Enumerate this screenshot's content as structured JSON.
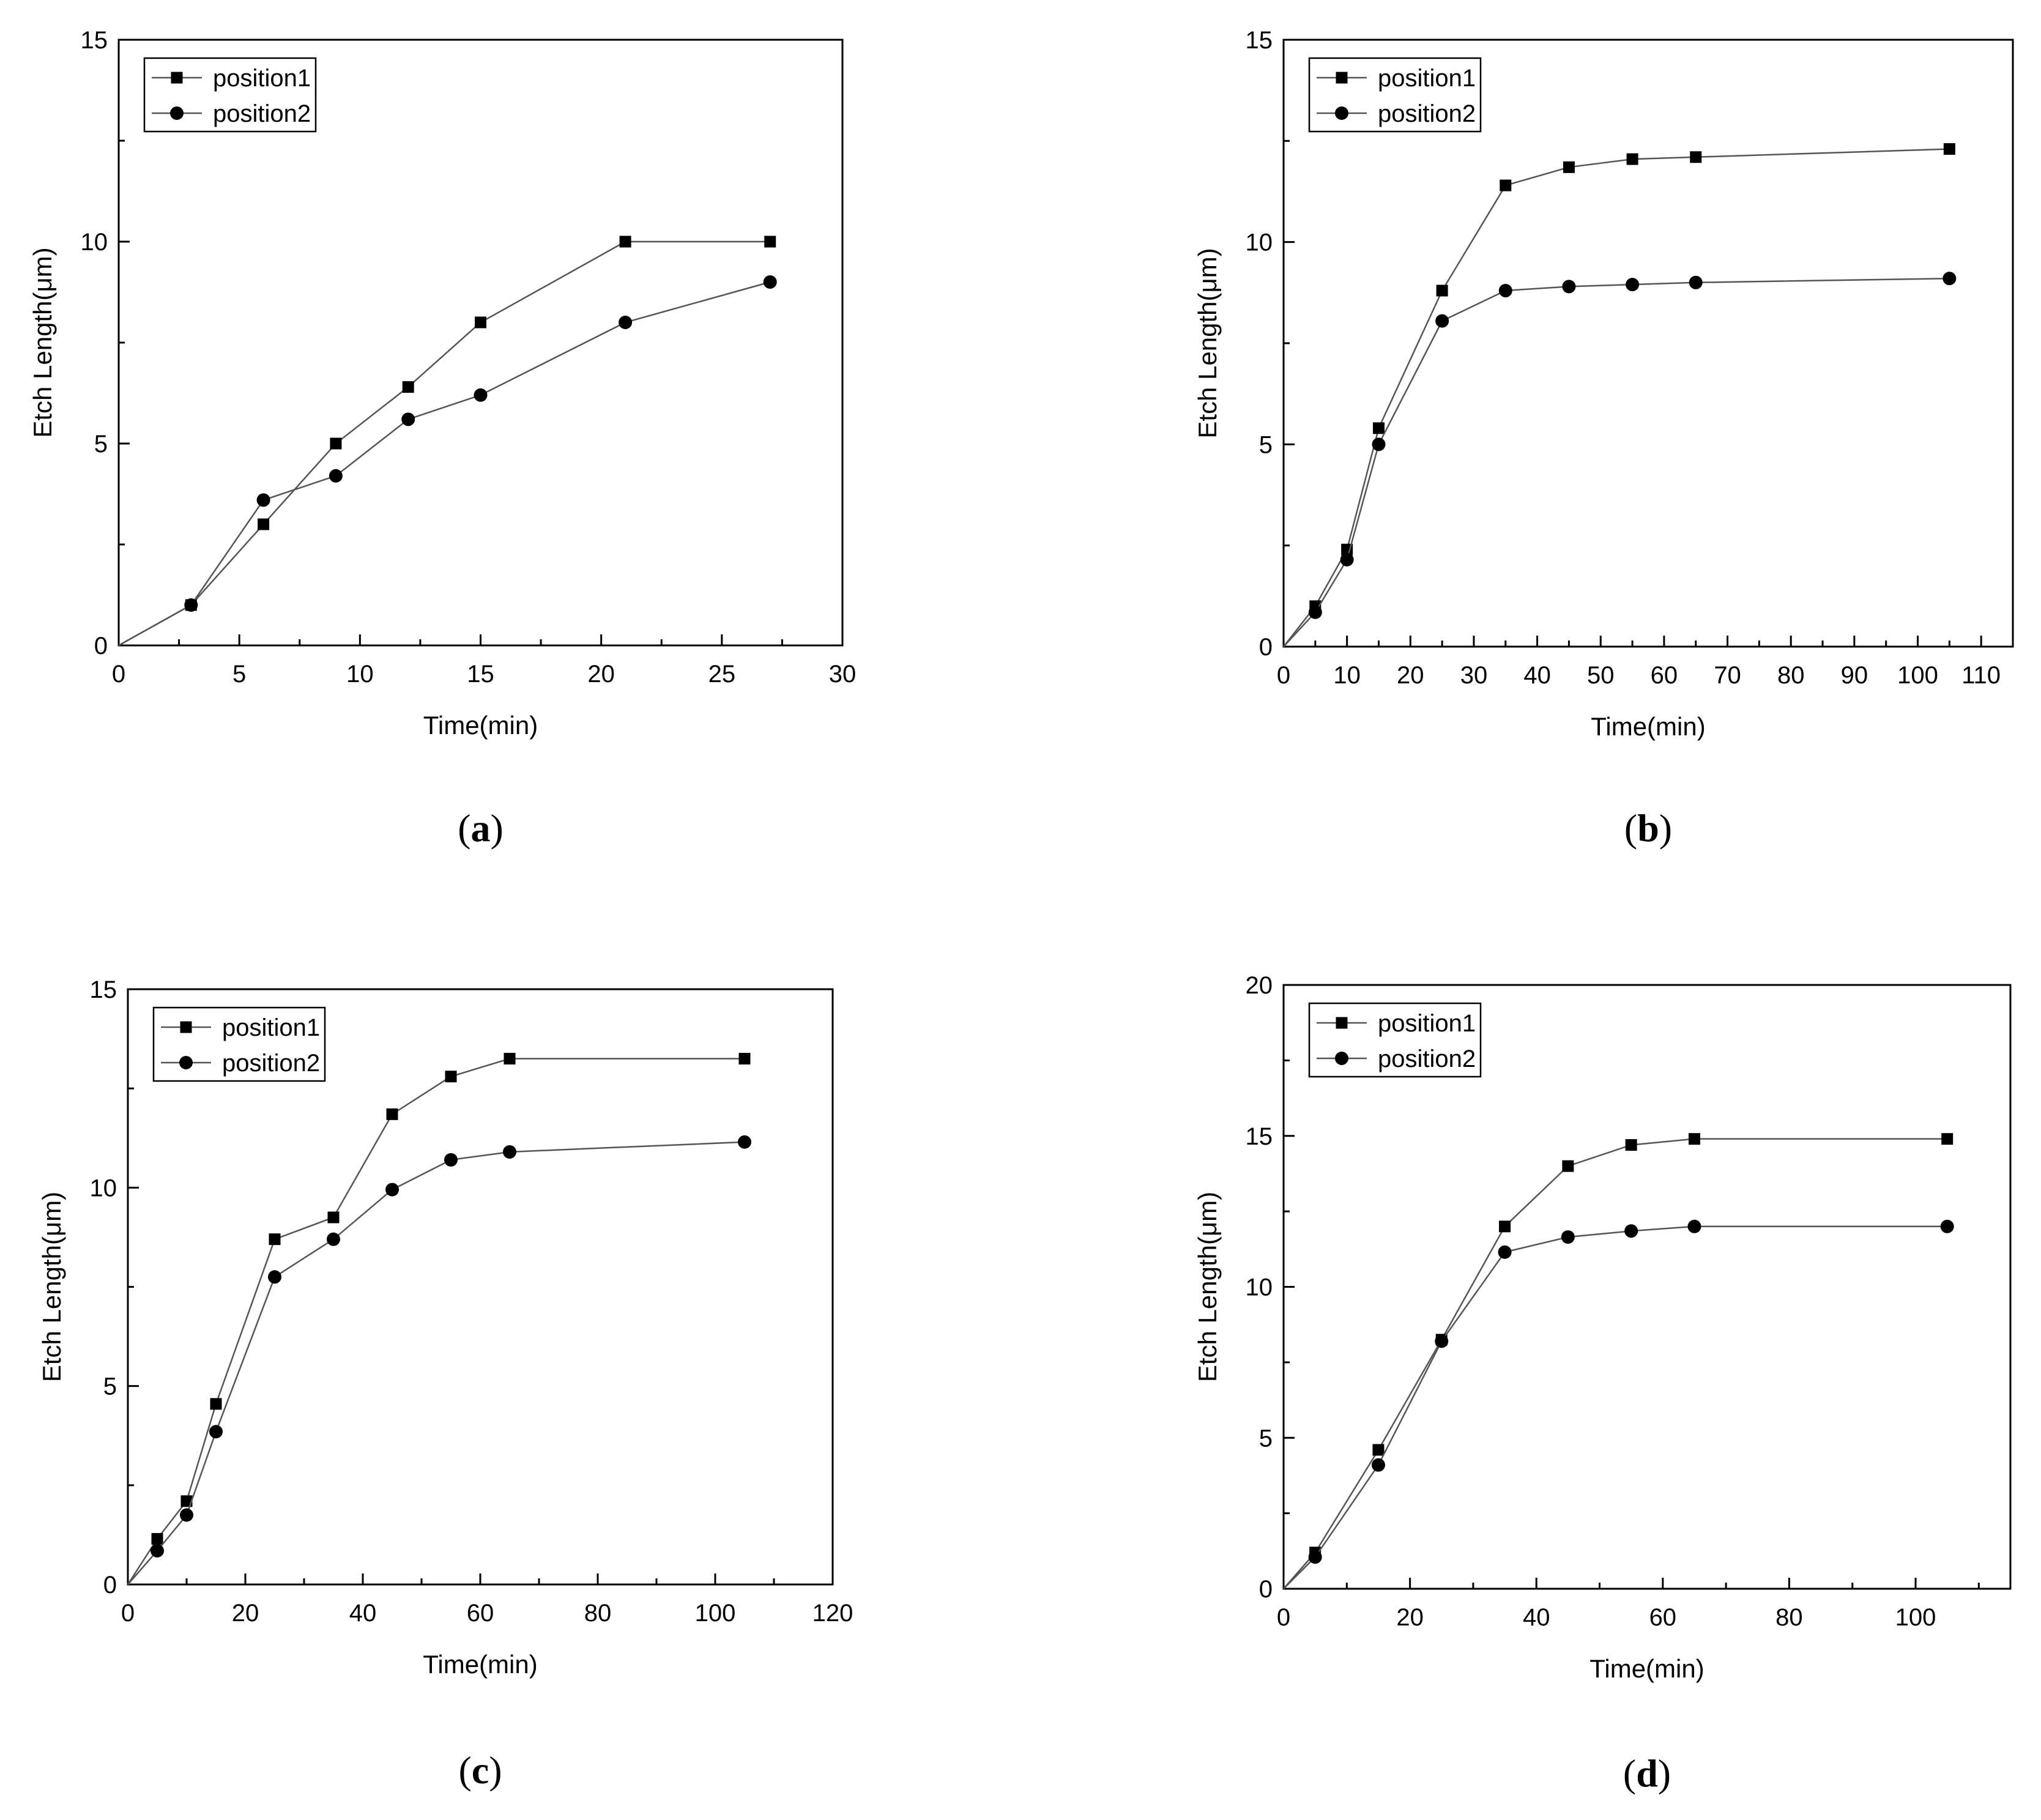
{
  "chart_data": [
    {
      "panel_label": "a",
      "type": "line",
      "xlabel": "Time(min)",
      "ylabel": "Etch Length(μm)",
      "xlim": [
        0,
        30
      ],
      "ylim": [
        0,
        15
      ],
      "xticks": [
        0,
        5,
        10,
        15,
        20,
        25,
        30
      ],
      "yticks": [
        0,
        5,
        10,
        15
      ],
      "legend_position": "top-left",
      "series": [
        {
          "name": "position1",
          "marker": "square",
          "x": [
            0,
            3,
            6,
            9,
            12,
            15,
            21,
            27
          ],
          "values": [
            0,
            1,
            3,
            5,
            6.4,
            8,
            10,
            10
          ]
        },
        {
          "name": "position2",
          "marker": "circle",
          "x": [
            0,
            3,
            6,
            9,
            12,
            15,
            21,
            27
          ],
          "values": [
            0,
            1,
            3.6,
            4.2,
            5.6,
            6.2,
            8,
            9
          ]
        }
      ]
    },
    {
      "panel_label": "b",
      "type": "line",
      "xlabel": "Time(min)",
      "ylabel": "Etch Length(μm)",
      "xlim": [
        0,
        115
      ],
      "ylim": [
        0,
        15
      ],
      "xticks": [
        0,
        10,
        20,
        30,
        40,
        50,
        60,
        70,
        80,
        90,
        100,
        110
      ],
      "yticks": [
        0,
        5,
        10,
        15
      ],
      "legend_position": "top-left",
      "series": [
        {
          "name": "position1",
          "marker": "square",
          "x": [
            0,
            5,
            10,
            15,
            25,
            35,
            45,
            55,
            65,
            105
          ],
          "values": [
            0,
            1.0,
            2.4,
            5.4,
            8.8,
            11.4,
            11.85,
            12.05,
            12.1,
            12.3
          ]
        },
        {
          "name": "position2",
          "marker": "circle",
          "x": [
            0,
            5,
            10,
            15,
            25,
            35,
            45,
            55,
            65,
            105
          ],
          "values": [
            0,
            0.85,
            2.15,
            5.0,
            8.05,
            8.8,
            8.9,
            8.95,
            9.0,
            9.1
          ]
        }
      ]
    },
    {
      "panel_label": "c",
      "type": "line",
      "xlabel": "Time(min)",
      "ylabel": "Etch Length(μm)",
      "xlim": [
        0,
        120
      ],
      "ylim": [
        0,
        15
      ],
      "xticks": [
        0,
        20,
        40,
        60,
        80,
        100,
        120
      ],
      "yticks": [
        0,
        5,
        10,
        15
      ],
      "legend_position": "top-left",
      "series": [
        {
          "name": "position1",
          "marker": "square",
          "x": [
            0,
            5,
            10,
            15,
            25,
            35,
            45,
            55,
            65,
            105
          ],
          "values": [
            0,
            1.15,
            2.1,
            4.55,
            8.7,
            9.25,
            11.85,
            12.8,
            13.25,
            13.25
          ]
        },
        {
          "name": "position2",
          "marker": "circle",
          "x": [
            0,
            5,
            10,
            15,
            25,
            35,
            45,
            55,
            65,
            105
          ],
          "values": [
            0,
            0.85,
            1.75,
            3.85,
            7.75,
            8.7,
            9.95,
            10.7,
            10.9,
            11.15
          ]
        }
      ]
    },
    {
      "panel_label": "d",
      "type": "line",
      "xlabel": "Time(min)",
      "ylabel": "Etch Length(μm)",
      "xlim": [
        0,
        115
      ],
      "ylim": [
        0,
        20
      ],
      "xticks": [
        0,
        20,
        40,
        60,
        80,
        100
      ],
      "yticks": [
        0,
        5,
        10,
        15,
        20
      ],
      "legend_position": "top-left",
      "series": [
        {
          "name": "position1",
          "marker": "square",
          "x": [
            0,
            5,
            15,
            25,
            35,
            45,
            55,
            65,
            105
          ],
          "values": [
            0,
            1.2,
            4.6,
            8.25,
            12.0,
            14.0,
            14.7,
            14.9,
            14.9
          ]
        },
        {
          "name": "position2",
          "marker": "circle",
          "x": [
            0,
            5,
            15,
            25,
            35,
            45,
            55,
            65,
            105
          ],
          "values": [
            0,
            1.05,
            4.1,
            8.2,
            11.15,
            11.65,
            11.85,
            12.0,
            12.0
          ]
        }
      ]
    }
  ]
}
